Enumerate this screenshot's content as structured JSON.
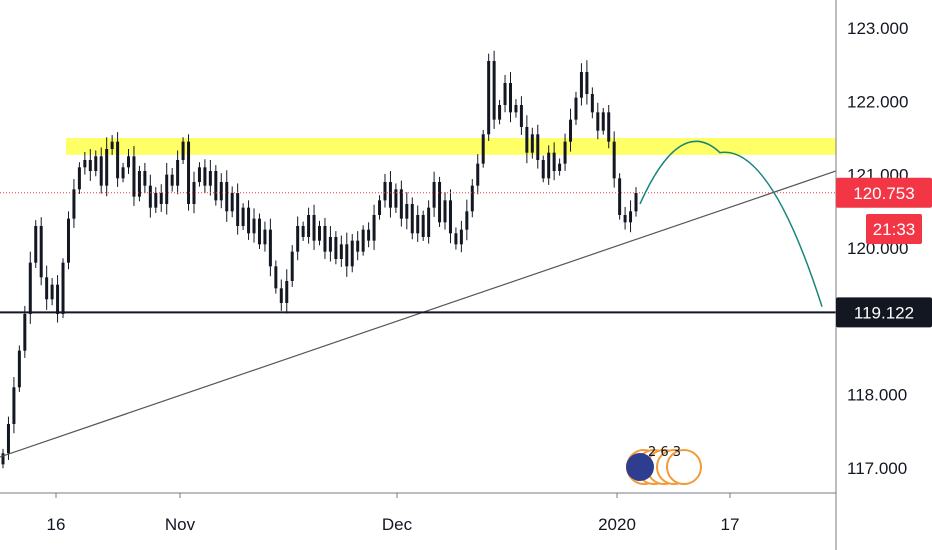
{
  "chart_data": {
    "type": "candlestick",
    "y_axis": {
      "ticks": [
        "123.000",
        "122.000",
        "121.000",
        "120.000",
        "118.000",
        "117.000"
      ],
      "tick_values": [
        123,
        122,
        121,
        120,
        118,
        117
      ],
      "range": [
        116.75,
        123.35
      ]
    },
    "x_axis": {
      "ticks": [
        "16",
        "Nov",
        "Dec",
        "2020",
        "17"
      ]
    },
    "price_tags": [
      {
        "label": "120.753",
        "value": 120.753,
        "color": "#f23645"
      },
      {
        "label": "21:33",
        "color": "#f23645"
      },
      {
        "label": "119.122",
        "value": 119.122,
        "color": "#131722"
      }
    ],
    "resistance_zone": {
      "from": 121.27,
      "to": 121.5,
      "color": "#ffff66"
    },
    "support_line": {
      "value": 119.122
    },
    "trendline": {
      "from": 117.15,
      "to": 121.05
    },
    "projection": {
      "color": "#17867a",
      "start": 120.6,
      "peak": 121.3,
      "end": 119.2
    },
    "series": {
      "close": [
        117.2,
        117.6,
        118.1,
        118.6,
        119.1,
        119.8,
        120.3,
        119.6,
        119.3,
        119.5,
        119.1,
        119.8,
        120.4,
        120.8,
        121.1,
        121.2,
        121.05,
        121.25,
        120.85,
        121.35,
        121.45,
        120.95,
        121.1,
        121.25,
        120.7,
        121.05,
        120.85,
        120.55,
        120.75,
        120.6,
        121.0,
        120.85,
        121.2,
        121.45,
        120.6,
        120.9,
        121.1,
        120.85,
        121.05,
        120.65,
        120.9,
        120.5,
        120.75,
        120.3,
        120.55,
        120.2,
        120.4,
        120.05,
        120.25,
        119.75,
        119.45,
        119.25,
        119.55,
        119.95,
        120.3,
        120.15,
        120.45,
        120.1,
        120.3,
        119.95,
        120.15,
        119.85,
        120.05,
        119.75,
        120.1,
        119.95,
        120.25,
        120.1,
        120.45,
        120.65,
        120.9,
        120.55,
        120.8,
        120.4,
        120.6,
        120.2,
        120.45,
        120.15,
        120.55,
        120.9,
        120.35,
        120.65,
        120.2,
        120.05,
        120.25,
        120.5,
        120.85,
        121.15,
        121.55,
        122.55,
        121.75,
        121.95,
        122.25,
        121.85,
        121.95,
        121.65,
        121.3,
        121.55,
        121.2,
        120.95,
        121.3,
        121.05,
        121.15,
        121.45,
        121.75,
        122.05,
        122.4,
        122.1,
        121.85,
        121.6,
        121.85,
        121.45,
        120.95,
        120.45,
        120.35,
        120.5,
        120.75
      ]
    },
    "events": {
      "label": "2 6 3"
    }
  }
}
